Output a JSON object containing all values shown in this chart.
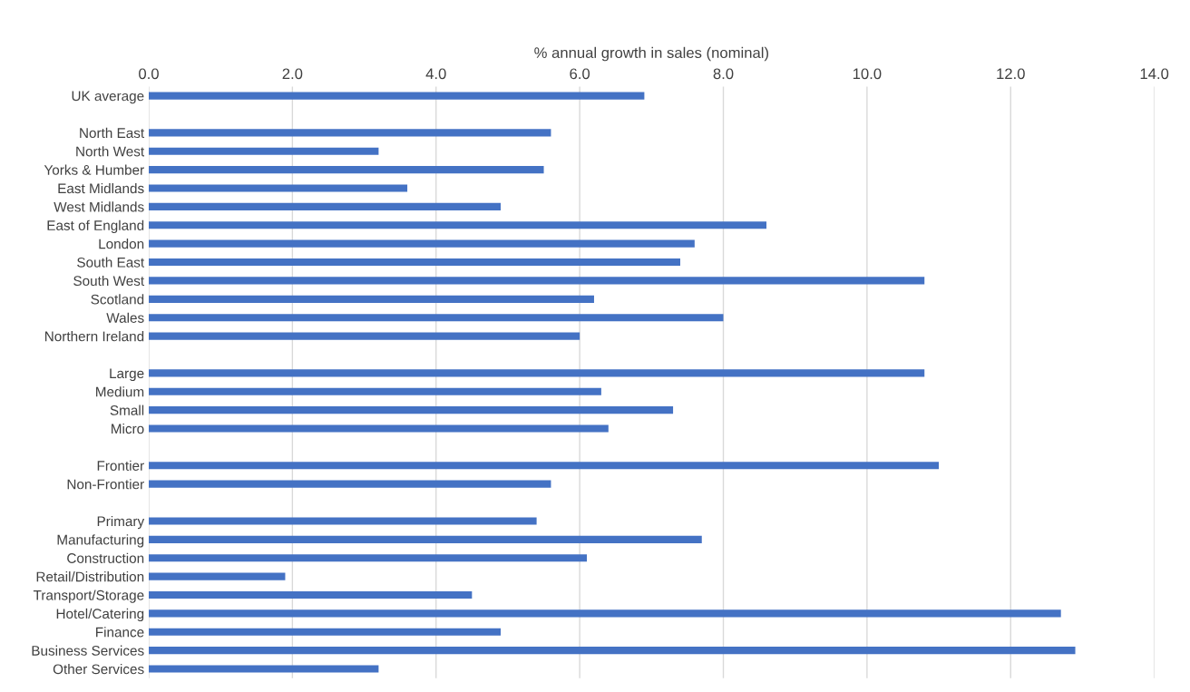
{
  "chart_data": {
    "type": "bar",
    "orientation": "horizontal",
    "xlabel": "% annual growth in sales (nominal)",
    "categories": [
      "UK average",
      null,
      "North East",
      "North West",
      "Yorks & Humber",
      "East Midlands",
      "West Midlands",
      "East of England",
      "London",
      "South East",
      "South West",
      "Scotland",
      "Wales",
      "Northern Ireland",
      null,
      "Large",
      "Medium",
      "Small",
      "Micro",
      null,
      "Frontier",
      "Non-Frontier",
      null,
      "Primary",
      "Manufacturing",
      "Construction",
      "Retail/Distribution",
      "Transport/Storage",
      "Hotel/Catering",
      "Finance",
      "Business Services",
      "Other Services"
    ],
    "values": [
      6.9,
      null,
      5.6,
      3.2,
      5.5,
      3.6,
      4.9,
      8.6,
      7.6,
      7.4,
      10.8,
      6.2,
      8.0,
      6.0,
      null,
      10.8,
      6.3,
      7.3,
      6.4,
      null,
      11.0,
      5.6,
      null,
      5.4,
      7.7,
      6.1,
      1.9,
      4.5,
      12.7,
      4.9,
      12.9,
      3.2
    ],
    "color": "#4472c4",
    "xlim": [
      0,
      14
    ],
    "xticks": [
      {
        "value": 0,
        "label": "0.0"
      },
      {
        "value": 2,
        "label": "2.0"
      },
      {
        "value": 4,
        "label": "4.0"
      },
      {
        "value": 6,
        "label": "6.0"
      },
      {
        "value": 8,
        "label": "8.0"
      },
      {
        "value": 10,
        "label": "10.0"
      },
      {
        "value": 12,
        "label": "12.0"
      },
      {
        "value": 14,
        "label": "14.0"
      }
    ],
    "grid": "x",
    "legend": false
  }
}
